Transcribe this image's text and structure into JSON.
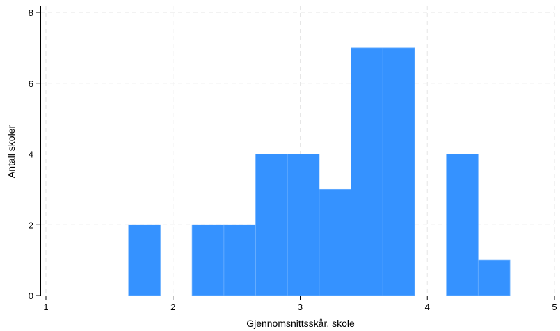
{
  "chart_data": {
    "type": "bar",
    "subtype": "histogram",
    "xlabel": "Gjennomsnittsskår, skole",
    "ylabel": "Antall skoler",
    "xlim": [
      1,
      5
    ],
    "ylim": [
      0,
      8
    ],
    "xticks": [
      1,
      2,
      3,
      4,
      5
    ],
    "yticks": [
      0,
      2,
      4,
      6,
      8
    ],
    "grid": true,
    "bar_color": "#3592FF",
    "bins": [
      {
        "x0": 1.65,
        "x1": 1.9,
        "count": 2
      },
      {
        "x0": 2.15,
        "x1": 2.4,
        "count": 2
      },
      {
        "x0": 2.4,
        "x1": 2.65,
        "count": 2
      },
      {
        "x0": 2.65,
        "x1": 2.9,
        "count": 4
      },
      {
        "x0": 2.9,
        "x1": 3.15,
        "count": 4
      },
      {
        "x0": 3.15,
        "x1": 3.4,
        "count": 3
      },
      {
        "x0": 3.4,
        "x1": 3.65,
        "count": 7
      },
      {
        "x0": 3.65,
        "x1": 3.9,
        "count": 7
      },
      {
        "x0": 4.15,
        "x1": 4.4,
        "count": 4
      },
      {
        "x0": 4.4,
        "x1": 4.65,
        "count": 1
      }
    ]
  }
}
